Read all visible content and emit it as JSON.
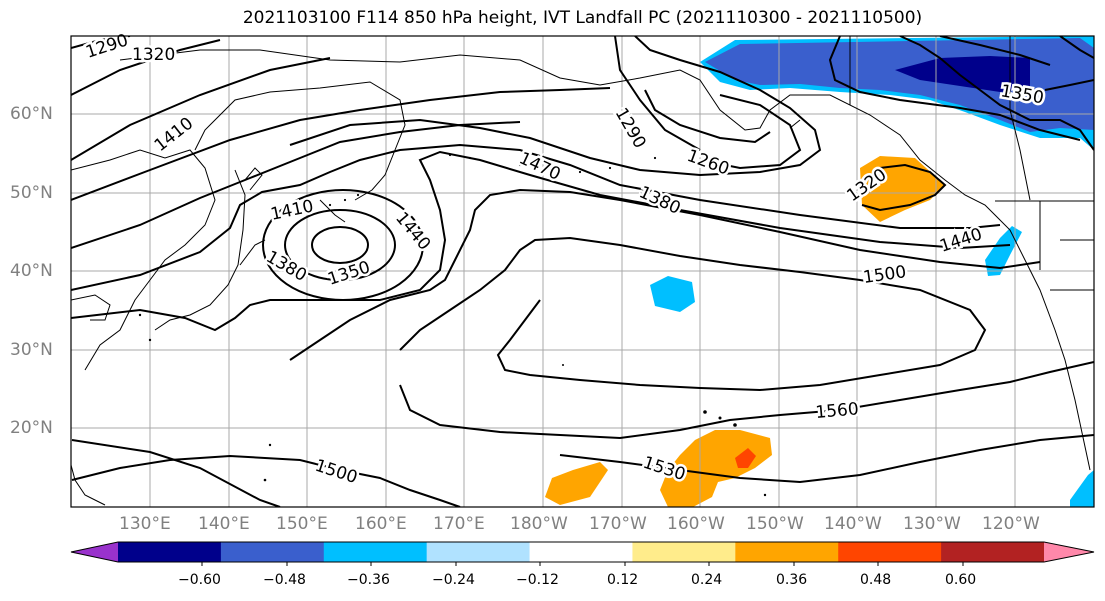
{
  "title": "2021103100 F114 850 hPa height, IVT Landfall PC (2021110300 - 2021110500)",
  "lat_labels": [
    "60°N",
    "50°N",
    "40°N",
    "30°N",
    "20°N"
  ],
  "lon_labels": [
    "130°E",
    "140°E",
    "150°E",
    "160°E",
    "170°E",
    "180°W",
    "170°W",
    "160°W",
    "150°W",
    "140°W",
    "130°W",
    "120°W"
  ],
  "contour_labels": {
    "c1290a": "1290",
    "c1320a": "1320",
    "c1410a": "1410",
    "c1290b": "1290",
    "c1260": "1260",
    "c1470": "1470",
    "c1380a": "1380",
    "c1320b": "1320",
    "c1350a": "1350",
    "c1410b": "1410",
    "c1440a": "1440",
    "c1380b": "1380",
    "c1350b": "1350",
    "c1440b": "1440",
    "c1500a": "1500",
    "c1560": "1560",
    "c1530": "1530",
    "c1500b": "1500"
  },
  "colorbar": {
    "ticks": [
      "−0.60",
      "−0.48",
      "−0.36",
      "−0.24",
      "−0.12",
      "0.12",
      "0.24",
      "0.36",
      "0.48",
      "0.60"
    ],
    "colors": [
      "#9932cc",
      "#00008b",
      "#3a5fcd",
      "#00bfff",
      "#b0e2ff",
      "#ffffff",
      "#ffec8b",
      "#ffa500",
      "#ff4500",
      "#b22222",
      "#ff88aa"
    ]
  }
}
